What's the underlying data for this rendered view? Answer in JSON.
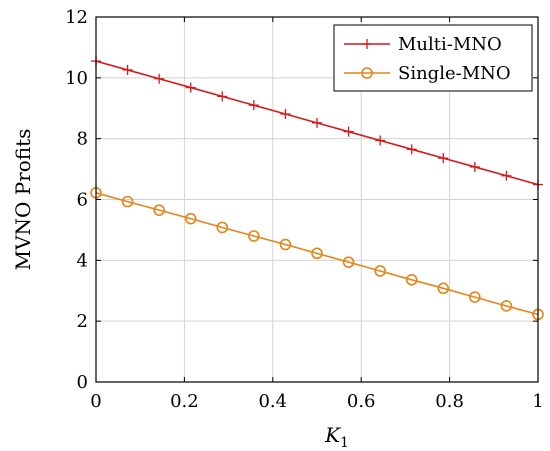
{
  "chart_data": {
    "type": "line",
    "title": "",
    "xlabel": "K",
    "xlabel_subscript": "1",
    "ylabel": "MVNO Profits",
    "xlim": [
      0,
      1
    ],
    "ylim": [
      0,
      12
    ],
    "xticks": [
      "0",
      "0.2",
      "0.4",
      "0.6",
      "0.8",
      "1"
    ],
    "yticks": [
      "0",
      "2",
      "4",
      "6",
      "8",
      "10",
      "12"
    ],
    "grid": true,
    "legend_position": "top-right",
    "x": [
      0,
      0.0714,
      0.1429,
      0.2143,
      0.2857,
      0.3571,
      0.4286,
      0.5,
      0.5714,
      0.6429,
      0.7143,
      0.7857,
      0.8571,
      0.9286,
      1
    ],
    "series": [
      {
        "name": "Multi-MNO",
        "color": "#d7191c",
        "marker": "plus",
        "values": [
          10.55,
          10.26,
          9.97,
          9.68,
          9.39,
          9.1,
          8.81,
          8.52,
          8.23,
          7.94,
          7.65,
          7.36,
          7.07,
          6.78,
          6.49
        ]
      },
      {
        "name": "Single-MNO",
        "color": "#e8841a",
        "marker": "circle",
        "values": [
          6.22,
          5.93,
          5.65,
          5.37,
          5.08,
          4.8,
          4.52,
          4.23,
          3.94,
          3.65,
          3.36,
          3.08,
          2.79,
          2.5,
          2.22
        ]
      }
    ]
  }
}
